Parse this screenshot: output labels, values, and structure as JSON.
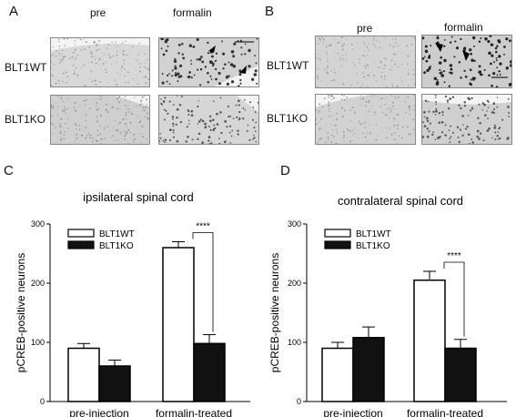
{
  "panels": {
    "A": {
      "label": "A",
      "col_pre": "pre",
      "col_formalin": "formalin",
      "row_wt": "BLT1WT",
      "row_ko": "BLT1KO"
    },
    "B": {
      "label": "B",
      "col_pre": "pre",
      "col_formalin": "formalin",
      "row_wt": "BLT1WT",
      "row_ko": "BLT1KO"
    },
    "C": {
      "label": "C"
    },
    "D": {
      "label": "D"
    }
  },
  "colors": {
    "wt_fill": "#ffffff",
    "ko_fill": "#111111",
    "axis": "#000000"
  },
  "chart_data": [
    {
      "type": "bar",
      "title": "ipsilateral spinal cord",
      "ylabel": "pCREB-positive neurons",
      "xlabel": "",
      "ylim": [
        0,
        300
      ],
      "yticks": [
        0,
        100,
        200,
        300
      ],
      "categories": [
        "pre-injection",
        "formalin-treated"
      ],
      "series": [
        {
          "name": "BLT1WT",
          "values": [
            90,
            260
          ],
          "errors": [
            8,
            10
          ],
          "color": "#ffffff"
        },
        {
          "name": "BLT1KO",
          "values": [
            60,
            98
          ],
          "errors": [
            10,
            15
          ],
          "color": "#111111"
        }
      ],
      "significance": {
        "label": "****",
        "category": "formalin-treated"
      },
      "legend": "top-left"
    },
    {
      "type": "bar",
      "title": "contralateral spinal cord",
      "ylabel": "pCREB-positive neurons",
      "xlabel": "",
      "ylim": [
        0,
        300
      ],
      "yticks": [
        0,
        100,
        200,
        300
      ],
      "categories": [
        "pre-injection",
        "formalin-treated"
      ],
      "series": [
        {
          "name": "BLT1WT",
          "values": [
            90,
            205
          ],
          "errors": [
            10,
            15
          ],
          "color": "#ffffff"
        },
        {
          "name": "BLT1KO",
          "values": [
            108,
            90
          ],
          "errors": [
            18,
            15
          ],
          "color": "#111111"
        }
      ],
      "significance": {
        "label": "****",
        "category": "formalin-treated"
      },
      "legend": "top-left"
    }
  ]
}
